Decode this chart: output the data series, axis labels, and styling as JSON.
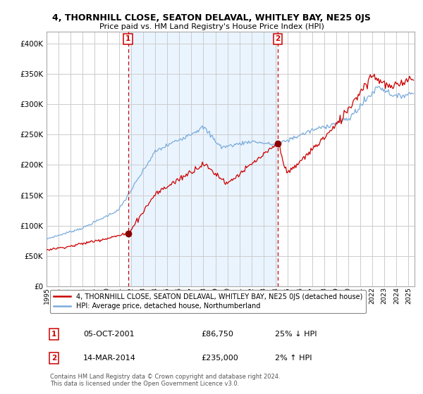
{
  "title": "4, THORNHILL CLOSE, SEATON DELAVAL, WHITLEY BAY, NE25 0JS",
  "subtitle": "Price paid vs. HM Land Registry's House Price Index (HPI)",
  "ylim": [
    0,
    420000
  ],
  "yticks": [
    0,
    50000,
    100000,
    150000,
    200000,
    250000,
    300000,
    350000,
    400000
  ],
  "ytick_labels": [
    "£0",
    "£50K",
    "£100K",
    "£150K",
    "£200K",
    "£250K",
    "£300K",
    "£350K",
    "£400K"
  ],
  "sale1_date": 2001.75,
  "sale1_price": 86750,
  "sale1_label": "1",
  "sale1_info": "05-OCT-2001",
  "sale1_price_str": "£86,750",
  "sale1_hpi": "25% ↓ HPI",
  "sale2_date": 2014.17,
  "sale2_price": 235000,
  "sale2_label": "2",
  "sale2_info": "14-MAR-2014",
  "sale2_price_str": "£235,000",
  "sale2_hpi": "2% ↑ HPI",
  "legend_property": "4, THORNHILL CLOSE, SEATON DELAVAL, WHITLEY BAY, NE25 0JS (detached house)",
  "legend_hpi": "HPI: Average price, detached house, Northumberland",
  "property_line_color": "#cc0000",
  "hpi_line_color": "#7aacdb",
  "marker_color": "#8b0000",
  "vline_color": "#cc0000",
  "shade_color": "#ddeeff",
  "grid_color": "#cccccc",
  "bg_color": "#ffffff",
  "footnote": "Contains HM Land Registry data © Crown copyright and database right 2024.\nThis data is licensed under the Open Government Licence v3.0.",
  "xmin": 1995.0,
  "xmax": 2025.5
}
